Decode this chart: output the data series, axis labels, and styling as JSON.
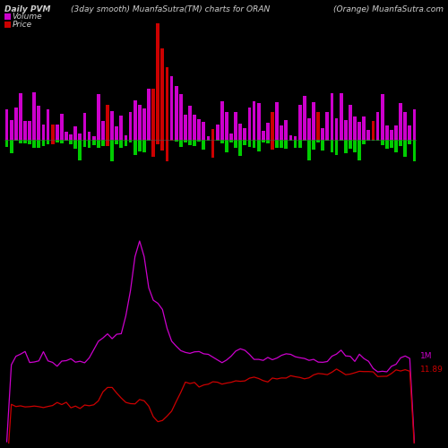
{
  "title_left": "Daily PVM",
  "title_center": "(3day smooth) MuanfaSutra(TM) charts for ORAN",
  "title_right": "(Orange) MuanfaSutra.com",
  "legend_volume": "Volume",
  "legend_price": "Price",
  "label_1m": "1M",
  "label_price": "11.89",
  "bg_color": "#000000",
  "text_color": "#d0d0d0",
  "volume_color_up": "#cc00cc",
  "volume_color_dn": "#cc0000",
  "price_color_up": "#00cc00",
  "price_color_dn": "#cc0000",
  "line_price_color": "#cc0000",
  "line_1m_color": "#cc00cc",
  "n_bars": 90
}
